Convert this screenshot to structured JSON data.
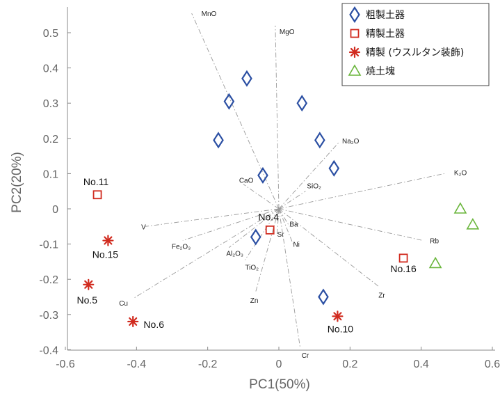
{
  "chart_data": {
    "type": "scatter",
    "xlabel": "PC1(50%)",
    "ylabel": "PC2(20%)",
    "xlim": [
      -0.6,
      0.6
    ],
    "ylim": [
      -0.4,
      0.5
    ],
    "xticks": [
      "-0.6",
      "-0.4",
      "-0.2",
      "0",
      "0.2",
      "0.4",
      "0.6"
    ],
    "yticks": [
      "0.5",
      "0.4",
      "0.3",
      "0.2",
      "0.1",
      "0",
      "-0.1",
      "-0.2",
      "-0.3",
      "-0.4"
    ],
    "grid": false,
    "legend_position": "top-right",
    "series": [
      {
        "name": "粗製土器",
        "marker": "diamond",
        "color": "#2b4fa3",
        "points": [
          {
            "x": -0.09,
            "y": 0.37
          },
          {
            "x": -0.14,
            "y": 0.305
          },
          {
            "x": 0.065,
            "y": 0.3
          },
          {
            "x": -0.17,
            "y": 0.195
          },
          {
            "x": 0.115,
            "y": 0.195
          },
          {
            "x": 0.155,
            "y": 0.115
          },
          {
            "x": -0.045,
            "y": 0.095
          },
          {
            "x": -0.065,
            "y": -0.08
          },
          {
            "x": 0.125,
            "y": -0.25
          }
        ]
      },
      {
        "name": "精製土器",
        "marker": "square",
        "color": "#d12b1f",
        "points": [
          {
            "x": -0.51,
            "y": 0.04,
            "label": "No.11"
          },
          {
            "x": -0.025,
            "y": -0.06,
            "label": "No.4"
          },
          {
            "x": 0.35,
            "y": -0.14,
            "label": "No.16"
          }
        ]
      },
      {
        "name": "精製 (ウスルタン装飾)",
        "marker": "asterisk",
        "color": "#d12b1f",
        "points": [
          {
            "x": -0.48,
            "y": -0.09,
            "label": "No.15"
          },
          {
            "x": -0.535,
            "y": -0.215,
            "label": "No.5"
          },
          {
            "x": -0.41,
            "y": -0.32,
            "label": "No.6"
          },
          {
            "x": 0.165,
            "y": -0.305,
            "label": "No.10"
          }
        ]
      },
      {
        "name": "焼土塊",
        "marker": "triangle",
        "color": "#6ab63c",
        "points": [
          {
            "x": 0.51,
            "y": 0.0
          },
          {
            "x": 0.545,
            "y": -0.045
          },
          {
            "x": 0.44,
            "y": -0.155
          }
        ]
      }
    ],
    "loadings": [
      {
        "label": "MnO",
        "x": -0.245,
        "y": 0.555
      },
      {
        "label": "MgO",
        "x": -0.01,
        "y": 0.52
      },
      {
        "label": "Na₂O",
        "x": 0.17,
        "y": 0.19
      },
      {
        "label": "K₂O",
        "x": 0.465,
        "y": 0.1
      },
      {
        "label": "CaO",
        "x": -0.1,
        "y": 0.07
      },
      {
        "label": "SiO₂",
        "x": 0.075,
        "y": 0.05
      },
      {
        "label": "V",
        "x": -0.375,
        "y": -0.05
      },
      {
        "label": "Fe₂O₃",
        "x": -0.27,
        "y": -0.09
      },
      {
        "label": "Al₂O₃",
        "x": -0.14,
        "y": -0.11
      },
      {
        "label": "TiO₂",
        "x": -0.095,
        "y": -0.145
      },
      {
        "label": "Ba",
        "x": 0.03,
        "y": -0.05
      },
      {
        "label": "Sr",
        "x": -0.005,
        "y": -0.075
      },
      {
        "label": "Ni",
        "x": 0.04,
        "y": -0.1
      },
      {
        "label": "Rb",
        "x": 0.405,
        "y": -0.09
      },
      {
        "label": "Cu",
        "x": -0.41,
        "y": -0.255
      },
      {
        "label": "Zn",
        "x": -0.065,
        "y": -0.235
      },
      {
        "label": "Zr",
        "x": 0.28,
        "y": -0.22
      },
      {
        "label": "Cr",
        "x": 0.06,
        "y": -0.395
      }
    ]
  }
}
